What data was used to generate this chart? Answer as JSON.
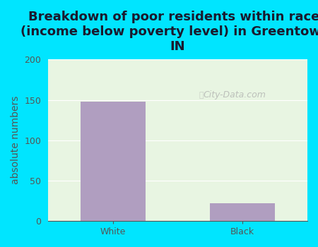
{
  "categories": [
    "White",
    "Black"
  ],
  "values": [
    148,
    22
  ],
  "bar_color": "#b09ec0",
  "title": "Breakdown of poor residents within races\n(income below poverty level) in Greentown,\nIN",
  "ylabel": "absolute numbers",
  "ylim": [
    0,
    200
  ],
  "yticks": [
    0,
    50,
    100,
    150,
    200
  ],
  "bg_outer": "#00e5ff",
  "bg_plot_top": "#e8f5e2",
  "bg_plot_bottom": "#d0ede0",
  "title_color": "#1a1a2e",
  "axis_color": "#555555",
  "watermark": "City-Data.com",
  "title_fontsize": 13,
  "label_fontsize": 10,
  "tick_fontsize": 9
}
